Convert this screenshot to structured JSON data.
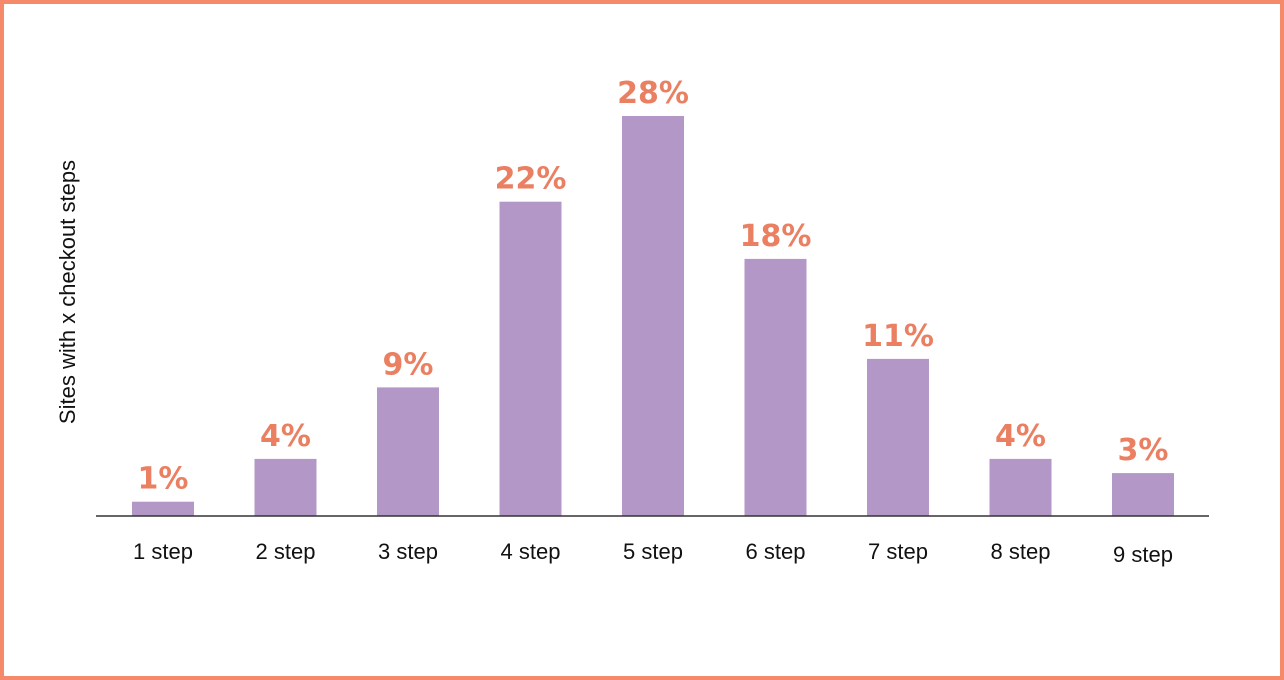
{
  "colors": {
    "frame": "#f58a6b",
    "bar": "#b297c7",
    "value_label": "#ea7f61",
    "axis": "#333333",
    "text": "#111111"
  },
  "chart_data": {
    "type": "bar",
    "ylabel": "Sites with x checkout steps",
    "xlabel": "",
    "categories": [
      "1 step",
      "2 step",
      "3 step",
      "4 step",
      "5 step",
      "6 step",
      "7 step",
      "8 step",
      "9 step"
    ],
    "values": [
      1,
      4,
      9,
      22,
      28,
      18,
      11,
      4,
      3
    ],
    "data_labels": [
      "1%",
      "4%",
      "9%",
      "22%",
      "28%",
      "18%",
      "11%",
      "4%",
      "3%"
    ],
    "unit": "%",
    "ylim": [
      0,
      28
    ],
    "grid": false,
    "legend": "none"
  }
}
